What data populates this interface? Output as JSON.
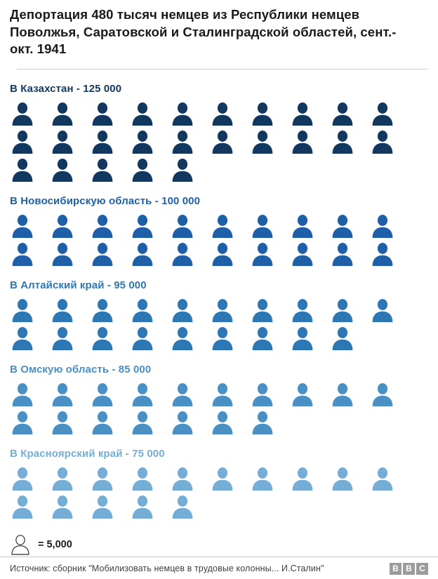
{
  "title": "Депортация 480 тысяч немцев из Республики немцев Поволжья, Саратовской и Сталинградской областей, сент.-окт. 1941",
  "chart_data": {
    "type": "pictogram",
    "title": "Депортация 480 тысяч немцев из Республики немцев Поволжья, Саратовской и Сталинградской областей, сент.-окт. 1941",
    "unit_value": 5000,
    "unit_label": "= 5,000",
    "icons_per_row": 10,
    "total": 480000,
    "series": [
      {
        "label": "В Казахстан - 125 000",
        "destination": "Казахстан",
        "value": 125000,
        "icon_count": 25,
        "color": "#13385f"
      },
      {
        "label": "В Новосибирскую область - 100 000",
        "destination": "Новосибирская область",
        "value": 100000,
        "icon_count": 20,
        "color": "#1f5fa8"
      },
      {
        "label": "В Алтайский край - 95 000",
        "destination": "Алтайский край",
        "value": 95000,
        "icon_count": 19,
        "color": "#2e77b5"
      },
      {
        "label": "В Омскую область - 85 000",
        "destination": "Омская область",
        "value": 85000,
        "icon_count": 17,
        "color": "#4a90c4"
      },
      {
        "label": "В Красноярский край - 75 000",
        "destination": "Красноярский край",
        "value": 75000,
        "icon_count": 15,
        "color": "#74aed6"
      }
    ]
  },
  "legend": {
    "label": "= 5,000"
  },
  "footer": {
    "source": "Источник: сборник \"Мобилизовать немцев в трудовые колонны... И.Сталин\"",
    "logo_letters": [
      "B",
      "B",
      "C"
    ]
  },
  "colors": {
    "title_text": "#1a1a1a",
    "separator": "#cccccc",
    "source_text": "#404040",
    "logo_gray": "#9c9c9c"
  }
}
